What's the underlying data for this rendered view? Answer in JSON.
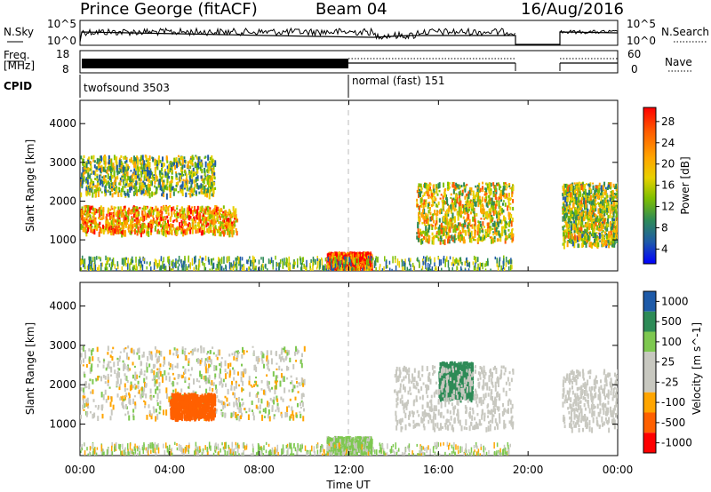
{
  "header": {
    "site": "Prince George (fitACF)",
    "beam": "Beam 04",
    "date": "16/Aug/2016"
  },
  "noise_panel": {
    "left_label": "N.Sky",
    "right_label": "N.Search",
    "left_ticks": [
      "10^5",
      "10^0"
    ],
    "right_ticks": [
      "10^5",
      "10^0"
    ]
  },
  "freq_panel": {
    "left_label_line1": "Freq.",
    "left_label_line2": "[MHz]",
    "right_label": "Nave",
    "left_ticks": [
      "18",
      "8"
    ],
    "right_ticks": [
      "60",
      "0"
    ]
  },
  "cpid": {
    "label": "CPID",
    "segments": [
      {
        "label": "twofsound 3503",
        "start_hour": 0
      },
      {
        "label": "normal (fast) 151",
        "start_hour": 12
      }
    ]
  },
  "chart_data": [
    {
      "type": "heatmap",
      "xlabel": "",
      "ylabel": "Slant Range [km]",
      "xlim": [
        0,
        24
      ],
      "ylim": [
        200,
        4600
      ],
      "yticks": [
        "1000",
        "2000",
        "3000",
        "4000"
      ],
      "colorbar_label": "Power [dB]",
      "colorbar_ticks": [
        "28",
        "24",
        "20",
        "16",
        "12",
        "8",
        "4"
      ],
      "colors": [
        "#ff0000",
        "#ff5a00",
        "#ffa500",
        "#e8d000",
        "#80c000",
        "#2e8b57",
        "#1e5aa8",
        "#0000ff"
      ],
      "features": [
        {
          "name": "E-region echoes",
          "x": [
            11.0,
            13.0
          ],
          "y": [
            300,
            700
          ],
          "value_db": 28
        },
        {
          "name": "F-region band",
          "x": [
            0.0,
            7.0
          ],
          "y": [
            1200,
            1900
          ],
          "value_db": 22
        },
        {
          "name": "upper echoes",
          "x": [
            0.0,
            6.0
          ],
          "y": [
            2200,
            3200
          ],
          "value_db": 14
        },
        {
          "name": "afternoon band",
          "x": [
            15.0,
            19.3
          ],
          "y": [
            1000,
            2500
          ],
          "value_db": 18
        },
        {
          "name": "late band",
          "x": [
            21.5,
            24.0
          ],
          "y": [
            900,
            2500
          ],
          "value_db": 16
        }
      ]
    },
    {
      "type": "heatmap",
      "xlabel": "Time UT",
      "ylabel": "Slant Range [km]",
      "xlim": [
        0,
        24
      ],
      "ylim": [
        200,
        4600
      ],
      "yticks": [
        "1000",
        "2000",
        "3000",
        "4000"
      ],
      "xticks": [
        "00:00",
        "04:00",
        "08:00",
        "12:00",
        "16:00",
        "20:00",
        "00:00"
      ],
      "colorbar_label": "Velocity [m s^-1]",
      "colorbar_ticks": [
        "1000",
        "500",
        "100",
        "25",
        "-25",
        "-100",
        "-500",
        "-1000"
      ],
      "colors": [
        "#1e5aa8",
        "#2e8b57",
        "#7ec850",
        "#c8c8c0",
        "#c8c8c0",
        "#ffa500",
        "#ff6000",
        "#ff0000"
      ],
      "features": [
        {
          "name": "ground scatter",
          "x": [
            0.0,
            10.0
          ],
          "y": [
            1200,
            3000
          ],
          "value_ms": 0
        },
        {
          "name": "negative flow",
          "x": [
            4.0,
            6.0
          ],
          "y": [
            1200,
            1800
          ],
          "value_ms": -500
        },
        {
          "name": "E-region positive",
          "x": [
            11.0,
            13.0
          ],
          "y": [
            300,
            700
          ],
          "value_ms": 100
        },
        {
          "name": "positive patch",
          "x": [
            16.0,
            17.5
          ],
          "y": [
            1700,
            2600
          ],
          "value_ms": 500
        }
      ]
    }
  ]
}
